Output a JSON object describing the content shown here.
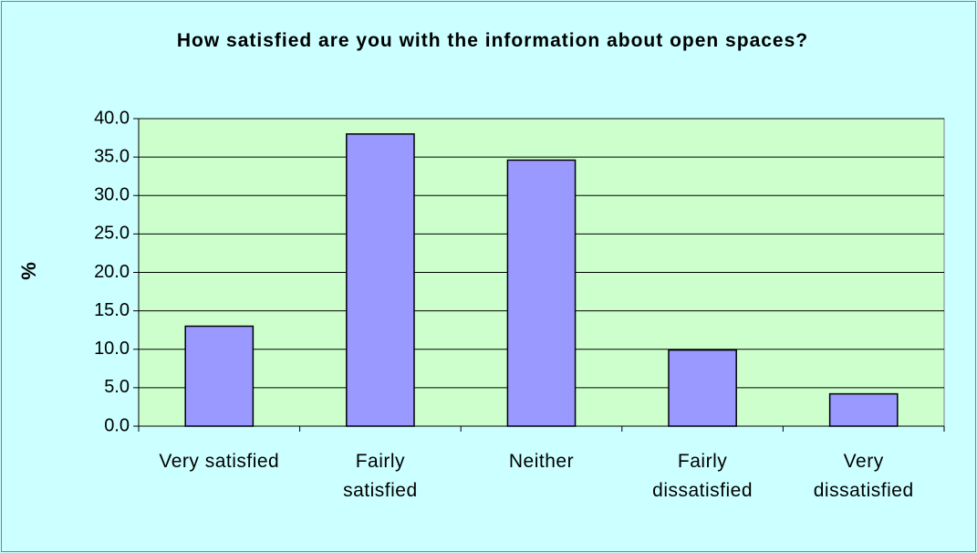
{
  "chart_data": {
    "type": "bar",
    "title": "How satisfied are you with the information about open spaces?",
    "y_label": "%",
    "categories": [
      "Very satisfied",
      "Fairly satisfied",
      "Neither",
      "Fairly dissatisfied",
      "Very dissatisfied"
    ],
    "values": [
      13.0,
      38.0,
      34.6,
      9.9,
      4.2
    ],
    "color": "#9999ff",
    "ylim": [
      0,
      40
    ],
    "yticks": [
      {
        "value": 0,
        "label": "0.0"
      },
      {
        "value": 5,
        "label": "5.0"
      },
      {
        "value": 10,
        "label": "10.0"
      },
      {
        "value": 15,
        "label": "15.0"
      },
      {
        "value": 20,
        "label": "20.0"
      },
      {
        "value": 25,
        "label": "25.0"
      },
      {
        "value": 30,
        "label": "30.0"
      },
      {
        "value": 35,
        "label": "35.0"
      },
      {
        "value": 40,
        "label": "40.0"
      }
    ],
    "grid": true
  }
}
